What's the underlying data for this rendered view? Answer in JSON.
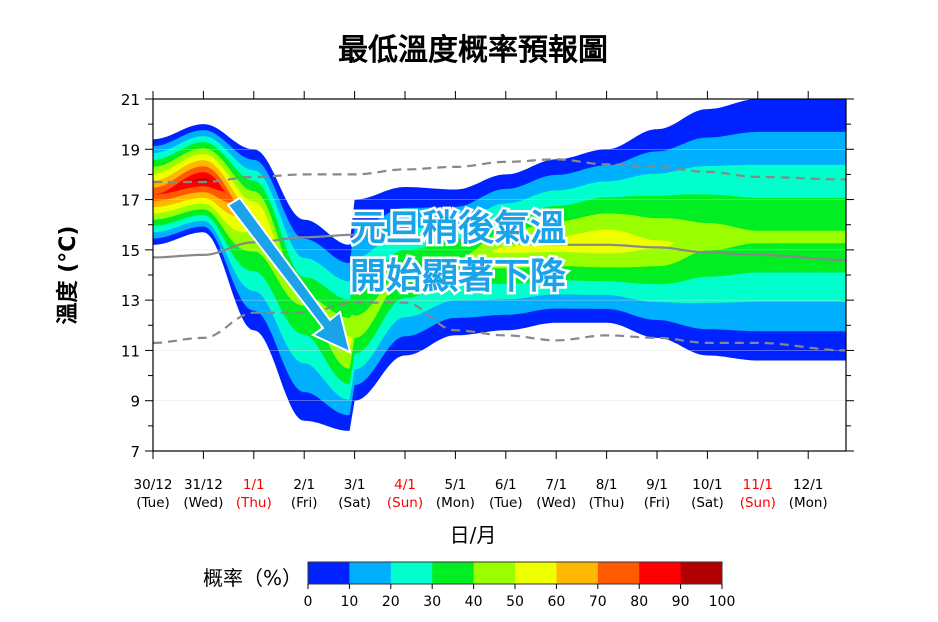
{
  "chart_data": {
    "type": "area",
    "title": "最低溫度概率預報圖",
    "xlabel": "日/月",
    "ylabel": "溫度 (°C)",
    "ylim": [
      7,
      21
    ],
    "yticks": [
      7,
      9,
      11,
      13,
      15,
      17,
      19,
      21
    ],
    "grid": true,
    "xticks": [
      {
        "date": "30/12",
        "day": "(Tue)",
        "holiday": false
      },
      {
        "date": "31/12",
        "day": "(Wed)",
        "holiday": false
      },
      {
        "date": "1/1",
        "day": "(Thu)",
        "holiday": true
      },
      {
        "date": "2/1",
        "day": "(Fri)",
        "holiday": false
      },
      {
        "date": "3/1",
        "day": "(Sat)",
        "holiday": false
      },
      {
        "date": "4/1",
        "day": "(Sun)",
        "holiday": true
      },
      {
        "date": "5/1",
        "day": "(Mon)",
        "holiday": false
      },
      {
        "date": "6/1",
        "day": "(Tue)",
        "holiday": false
      },
      {
        "date": "7/1",
        "day": "(Wed)",
        "holiday": false
      },
      {
        "date": "8/1",
        "day": "(Thu)",
        "holiday": false
      },
      {
        "date": "9/1",
        "day": "(Fri)",
        "holiday": false
      },
      {
        "date": "10/1",
        "day": "(Sat)",
        "holiday": false
      },
      {
        "date": "11/1",
        "day": "(Sun)",
        "holiday": true
      },
      {
        "date": "12/1",
        "day": "(Mon)",
        "holiday": false
      }
    ],
    "holiday_color": "#ff0000",
    "probability_field": {
      "day_index": [
        0,
        1,
        2,
        3,
        3.9,
        4,
        5,
        6,
        7,
        8,
        9,
        10,
        11,
        12,
        13.75
      ],
      "upper_bound": [
        19.4,
        20.0,
        19.0,
        16.2,
        15.2,
        17.0,
        17.5,
        17.4,
        18.0,
        18.6,
        19.0,
        19.8,
        20.6,
        21.0,
        21.0
      ],
      "lower_bound": [
        15.2,
        15.7,
        11.8,
        8.2,
        7.8,
        9.0,
        10.8,
        11.6,
        11.8,
        12.1,
        12.1,
        11.5,
        10.8,
        10.6,
        10.6
      ],
      "peak_temp": [
        17.2,
        17.8,
        16.5,
        13.0,
        11.2,
        11.8,
        14.0,
        14.5,
        15.0,
        15.2,
        15.3,
        15.2,
        15.5,
        15.5,
        15.5
      ],
      "peak_probability": [
        80,
        92,
        60,
        42,
        55,
        45,
        42,
        42,
        52,
        55,
        58,
        52,
        45,
        42,
        42
      ]
    },
    "series": [
      {
        "style": "dashed",
        "values": [
          17.7,
          17.7,
          17.9,
          18.0,
          18.0,
          18.2,
          18.3,
          18.5,
          18.6,
          18.4,
          18.3,
          18.1,
          17.9,
          17.8
        ]
      },
      {
        "style": "solid",
        "values": [
          14.7,
          14.8,
          15.3,
          15.5,
          15.6,
          15.5,
          15.4,
          15.3,
          15.2,
          15.2,
          15.1,
          14.9,
          14.8,
          14.6
        ]
      },
      {
        "style": "dashed",
        "values": [
          11.3,
          11.5,
          12.5,
          12.5,
          12.9,
          12.9,
          11.8,
          11.6,
          11.4,
          11.6,
          11.5,
          11.3,
          11.3,
          11.0
        ]
      }
    ],
    "series_day_index": [
      0,
      1,
      2,
      3,
      4,
      5,
      6,
      7,
      8,
      9,
      10,
      11,
      12,
      13.75
    ],
    "colorbar": {
      "label": "概率（%）",
      "ticks": [
        "0",
        "10",
        "20",
        "30",
        "40",
        "50",
        "60",
        "70",
        "80",
        "90",
        "100"
      ],
      "colors": [
        "#0022ff",
        "#00b0ff",
        "#00ffcc",
        "#00ee22",
        "#99ff00",
        "#eeff00",
        "#ffb800",
        "#ff5a00",
        "#ff0000",
        "#b00000"
      ]
    },
    "annotation": {
      "line1": "元旦稍後氣溫",
      "line2": "開始顯著下降",
      "color": "#1aa3e8"
    }
  }
}
